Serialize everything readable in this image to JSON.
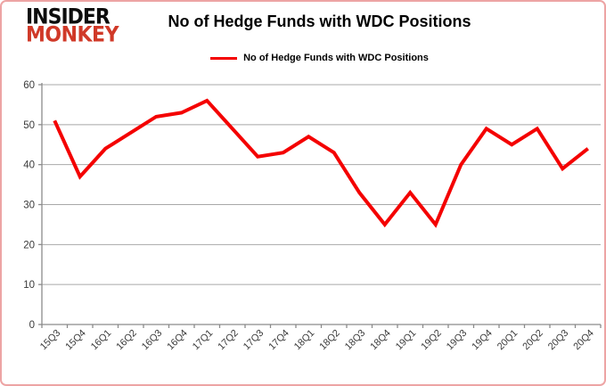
{
  "brand": {
    "line1": "INSIDER",
    "line2": "MONKEY"
  },
  "header": {
    "title": "No of Hedge Funds with WDC Positions"
  },
  "legend": {
    "label": "No of Hedge Funds with WDC Positions"
  },
  "colors": {
    "series": "#f40000",
    "brand_red": "#d03928",
    "grid": "#a8a8a8",
    "axis": "#8a8a8a",
    "tick_text": "#3a3a3a",
    "border": "#eda4a4"
  },
  "chart_data": {
    "type": "line",
    "title": "No of Hedge Funds with WDC Positions",
    "categories": [
      "15Q3",
      "15Q4",
      "16Q1",
      "16Q2",
      "16Q3",
      "16Q4",
      "17Q1",
      "17Q2",
      "17Q3",
      "17Q4",
      "18Q1",
      "18Q2",
      "18Q3",
      "18Q4",
      "19Q1",
      "19Q2",
      "19Q3",
      "19Q4",
      "20Q1",
      "20Q2",
      "20Q3",
      "20Q4"
    ],
    "values": [
      51,
      37,
      44,
      48,
      52,
      53,
      56,
      49,
      42,
      43,
      47,
      43,
      33,
      25,
      33,
      25,
      40,
      49,
      45,
      49,
      39,
      44
    ],
    "yticks": [
      0,
      10,
      20,
      30,
      40,
      50,
      60
    ],
    "ylim": [
      0,
      60
    ],
    "xlabel": "",
    "ylabel": "",
    "grid": true,
    "legend_position": "top"
  }
}
